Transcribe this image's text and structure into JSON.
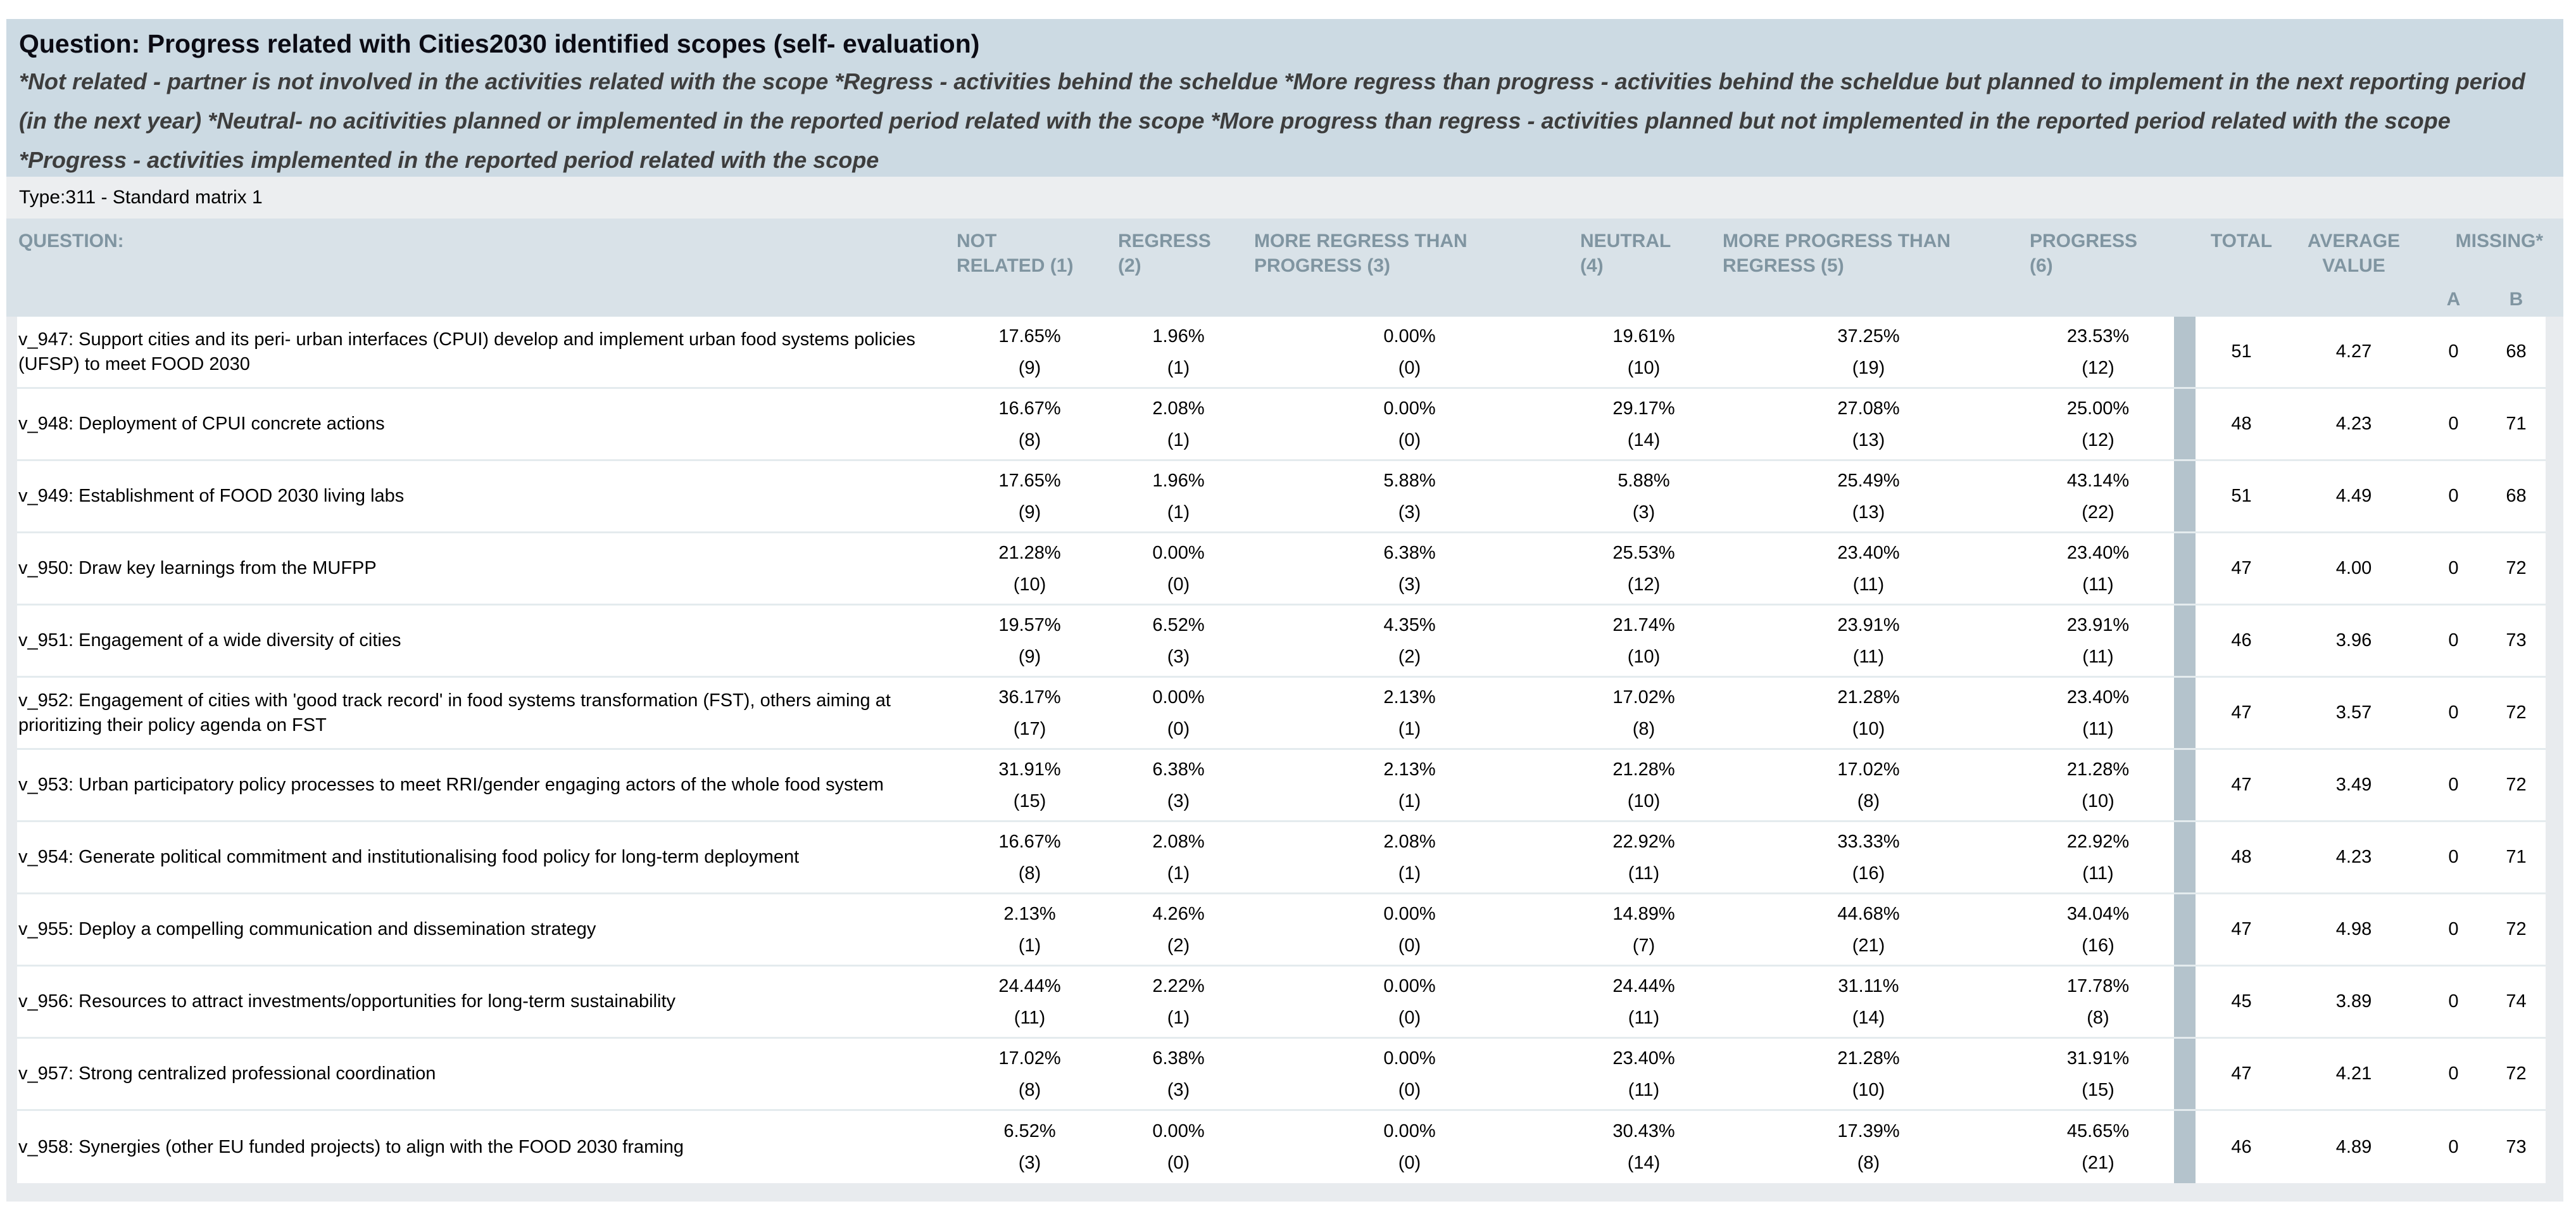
{
  "header": {
    "title": "Question: Progress related with Cities2030 identified scopes (self- evaluation)",
    "legend": "*Not related - partner is not involved in the activities related with the scope *Regress - activities behind the scheldue *More regress than progress - activities behind the scheldue but planned to implement in the next reporting period (in the next year) *Neutral- no acitivities planned or implemented in the reported period related with the scope *More progress than regress - activities planned but not implemented in the reported period related with the scope *Progress - activities implemented in the reported period related with the scope"
  },
  "type_label": "Type:311 - Standard matrix 1",
  "table": {
    "columns": {
      "question": "QUESTION:",
      "not_related": "NOT\nRELATED (1)",
      "regress": "REGRESS\n(2)",
      "more_regress": "MORE REGRESS THAN\nPROGRESS (3)",
      "neutral": "NEUTRAL\n(4)",
      "more_progress": "MORE PROGRESS THAN\nREGRESS (5)",
      "progress": "PROGRESS\n(6)",
      "total": "TOTAL",
      "average_value": "AVERAGE\nVALUE",
      "missing": {
        "label": "MISSING*",
        "a": "A",
        "b": "B"
      }
    },
    "rows": [
      {
        "question": "v_947: Support cities and its peri- urban interfaces (CPUI) develop and implement urban food systems policies (UFSP) to meet FOOD 2030",
        "cells": [
          {
            "pct": "17.65%",
            "count": "(9)"
          },
          {
            "pct": "1.96%",
            "count": "(1)"
          },
          {
            "pct": "0.00%",
            "count": "(0)"
          },
          {
            "pct": "19.61%",
            "count": "(10)"
          },
          {
            "pct": "37.25%",
            "count": "(19)"
          },
          {
            "pct": "23.53%",
            "count": "(12)"
          }
        ],
        "total": "51",
        "average": "4.27",
        "missing_a": "0",
        "missing_b": "68"
      },
      {
        "question": "v_948: Deployment of CPUI concrete actions",
        "cells": [
          {
            "pct": "16.67%",
            "count": "(8)"
          },
          {
            "pct": "2.08%",
            "count": "(1)"
          },
          {
            "pct": "0.00%",
            "count": "(0)"
          },
          {
            "pct": "29.17%",
            "count": "(14)"
          },
          {
            "pct": "27.08%",
            "count": "(13)"
          },
          {
            "pct": "25.00%",
            "count": "(12)"
          }
        ],
        "total": "48",
        "average": "4.23",
        "missing_a": "0",
        "missing_b": "71"
      },
      {
        "question": "v_949: Establishment of FOOD 2030 living labs",
        "cells": [
          {
            "pct": "17.65%",
            "count": "(9)"
          },
          {
            "pct": "1.96%",
            "count": "(1)"
          },
          {
            "pct": "5.88%",
            "count": "(3)"
          },
          {
            "pct": "5.88%",
            "count": "(3)"
          },
          {
            "pct": "25.49%",
            "count": "(13)"
          },
          {
            "pct": "43.14%",
            "count": "(22)"
          }
        ],
        "total": "51",
        "average": "4.49",
        "missing_a": "0",
        "missing_b": "68"
      },
      {
        "question": "v_950: Draw key learnings from the MUFPP",
        "cells": [
          {
            "pct": "21.28%",
            "count": "(10)"
          },
          {
            "pct": "0.00%",
            "count": "(0)"
          },
          {
            "pct": "6.38%",
            "count": "(3)"
          },
          {
            "pct": "25.53%",
            "count": "(12)"
          },
          {
            "pct": "23.40%",
            "count": "(11)"
          },
          {
            "pct": "23.40%",
            "count": "(11)"
          }
        ],
        "total": "47",
        "average": "4.00",
        "missing_a": "0",
        "missing_b": "72"
      },
      {
        "question": "v_951: Engagement of a wide diversity of cities",
        "cells": [
          {
            "pct": "19.57%",
            "count": "(9)"
          },
          {
            "pct": "6.52%",
            "count": "(3)"
          },
          {
            "pct": "4.35%",
            "count": "(2)"
          },
          {
            "pct": "21.74%",
            "count": "(10)"
          },
          {
            "pct": "23.91%",
            "count": "(11)"
          },
          {
            "pct": "23.91%",
            "count": "(11)"
          }
        ],
        "total": "46",
        "average": "3.96",
        "missing_a": "0",
        "missing_b": "73"
      },
      {
        "question": "v_952: Engagement of cities with 'good track record' in food systems transformation (FST), others aiming at prioritizing their policy agenda on FST",
        "cells": [
          {
            "pct": "36.17%",
            "count": "(17)"
          },
          {
            "pct": "0.00%",
            "count": "(0)"
          },
          {
            "pct": "2.13%",
            "count": "(1)"
          },
          {
            "pct": "17.02%",
            "count": "(8)"
          },
          {
            "pct": "21.28%",
            "count": "(10)"
          },
          {
            "pct": "23.40%",
            "count": "(11)"
          }
        ],
        "total": "47",
        "average": "3.57",
        "missing_a": "0",
        "missing_b": "72"
      },
      {
        "question": "v_953: Urban participatory policy processes to meet RRI/gender engaging actors of the whole food system",
        "cells": [
          {
            "pct": "31.91%",
            "count": "(15)"
          },
          {
            "pct": "6.38%",
            "count": "(3)"
          },
          {
            "pct": "2.13%",
            "count": "(1)"
          },
          {
            "pct": "21.28%",
            "count": "(10)"
          },
          {
            "pct": "17.02%",
            "count": "(8)"
          },
          {
            "pct": "21.28%",
            "count": "(10)"
          }
        ],
        "total": "47",
        "average": "3.49",
        "missing_a": "0",
        "missing_b": "72"
      },
      {
        "question": "v_954: Generate political commitment and institutionalising food policy for long-term deployment",
        "cells": [
          {
            "pct": "16.67%",
            "count": "(8)"
          },
          {
            "pct": "2.08%",
            "count": "(1)"
          },
          {
            "pct": "2.08%",
            "count": "(1)"
          },
          {
            "pct": "22.92%",
            "count": "(11)"
          },
          {
            "pct": "33.33%",
            "count": "(16)"
          },
          {
            "pct": "22.92%",
            "count": "(11)"
          }
        ],
        "total": "48",
        "average": "4.23",
        "missing_a": "0",
        "missing_b": "71"
      },
      {
        "question": "v_955: Deploy a compelling communication and dissemination strategy",
        "cells": [
          {
            "pct": "2.13%",
            "count": "(1)"
          },
          {
            "pct": "4.26%",
            "count": "(2)"
          },
          {
            "pct": "0.00%",
            "count": "(0)"
          },
          {
            "pct": "14.89%",
            "count": "(7)"
          },
          {
            "pct": "44.68%",
            "count": "(21)"
          },
          {
            "pct": "34.04%",
            "count": "(16)"
          }
        ],
        "total": "47",
        "average": "4.98",
        "missing_a": "0",
        "missing_b": "72"
      },
      {
        "question": "v_956: Resources to attract investments/opportunities for long-term sustainability",
        "cells": [
          {
            "pct": "24.44%",
            "count": "(11)"
          },
          {
            "pct": "2.22%",
            "count": "(1)"
          },
          {
            "pct": "0.00%",
            "count": "(0)"
          },
          {
            "pct": "24.44%",
            "count": "(11)"
          },
          {
            "pct": "31.11%",
            "count": "(14)"
          },
          {
            "pct": "17.78%",
            "count": "(8)"
          }
        ],
        "total": "45",
        "average": "3.89",
        "missing_a": "0",
        "missing_b": "74"
      },
      {
        "question": "v_957: Strong centralized professional coordination",
        "cells": [
          {
            "pct": "17.02%",
            "count": "(8)"
          },
          {
            "pct": "6.38%",
            "count": "(3)"
          },
          {
            "pct": "0.00%",
            "count": "(0)"
          },
          {
            "pct": "23.40%",
            "count": "(11)"
          },
          {
            "pct": "21.28%",
            "count": "(10)"
          },
          {
            "pct": "31.91%",
            "count": "(15)"
          }
        ],
        "total": "47",
        "average": "4.21",
        "missing_a": "0",
        "missing_b": "72"
      },
      {
        "question": "v_958: Synergies (other EU funded projects) to align with the FOOD 2030 framing",
        "cells": [
          {
            "pct": "6.52%",
            "count": "(3)"
          },
          {
            "pct": "0.00%",
            "count": "(0)"
          },
          {
            "pct": "0.00%",
            "count": "(0)"
          },
          {
            "pct": "30.43%",
            "count": "(14)"
          },
          {
            "pct": "17.39%",
            "count": "(8)"
          },
          {
            "pct": "45.65%",
            "count": "(21)"
          }
        ],
        "total": "46",
        "average": "4.89",
        "missing_a": "0",
        "missing_b": "73"
      }
    ]
  },
  "colors": {
    "header_box_bg": "#ccdae3",
    "panel_bg": "#e8ebee",
    "table_header_bg": "#d9e2e8",
    "table_header_text": "#8095a1",
    "separator_bar": "#b4c3cc",
    "row_divider": "#e4ebee"
  }
}
